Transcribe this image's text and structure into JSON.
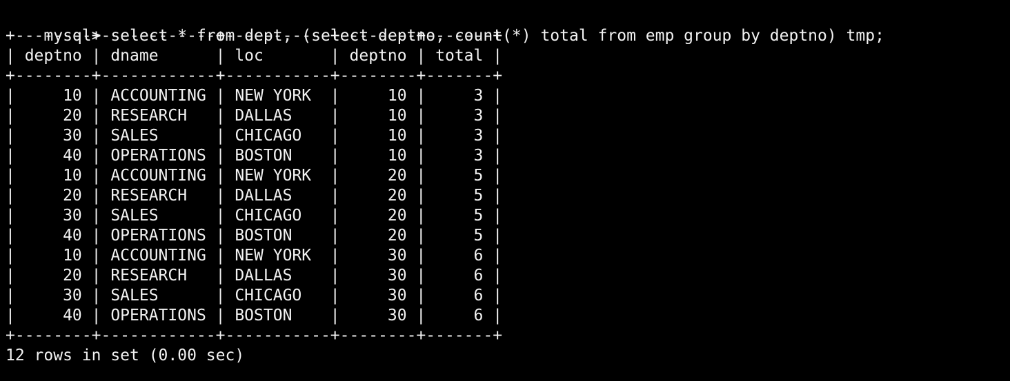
{
  "terminal": {
    "prompt": "mysql> ",
    "command": "select * from dept, (select deptno, count(*) total from emp group by deptno) tmp;",
    "status": "12 rows in set (0.00 sec)",
    "colors": {
      "background": "#000000",
      "foreground": "#f2f2f2"
    },
    "result_table": {
      "columns": [
        {
          "name": "deptno",
          "width": 8,
          "align": "right"
        },
        {
          "name": "dname",
          "width": 12,
          "align": "left"
        },
        {
          "name": "loc",
          "width": 11,
          "align": "left"
        },
        {
          "name": "deptno",
          "width": 8,
          "align": "right"
        },
        {
          "name": "total",
          "width": 7,
          "align": "right"
        }
      ],
      "rows": [
        [
          "10",
          "ACCOUNTING",
          "NEW YORK",
          "10",
          "3"
        ],
        [
          "20",
          "RESEARCH",
          "DALLAS",
          "10",
          "3"
        ],
        [
          "30",
          "SALES",
          "CHICAGO",
          "10",
          "3"
        ],
        [
          "40",
          "OPERATIONS",
          "BOSTON",
          "10",
          "3"
        ],
        [
          "10",
          "ACCOUNTING",
          "NEW YORK",
          "20",
          "5"
        ],
        [
          "20",
          "RESEARCH",
          "DALLAS",
          "20",
          "5"
        ],
        [
          "30",
          "SALES",
          "CHICAGO",
          "20",
          "5"
        ],
        [
          "40",
          "OPERATIONS",
          "BOSTON",
          "20",
          "5"
        ],
        [
          "10",
          "ACCOUNTING",
          "NEW YORK",
          "30",
          "6"
        ],
        [
          "20",
          "RESEARCH",
          "DALLAS",
          "30",
          "6"
        ],
        [
          "30",
          "SALES",
          "CHICAGO",
          "30",
          "6"
        ],
        [
          "40",
          "OPERATIONS",
          "BOSTON",
          "30",
          "6"
        ]
      ]
    }
  }
}
